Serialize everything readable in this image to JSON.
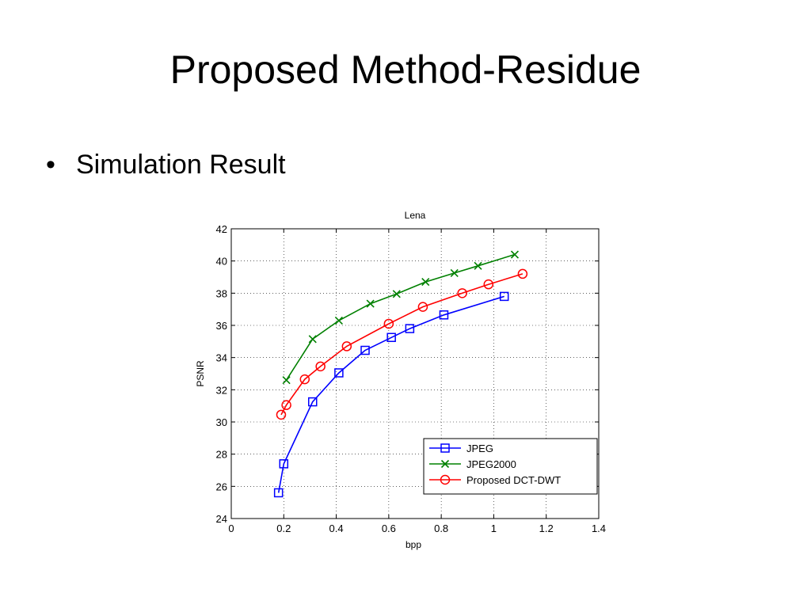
{
  "slide": {
    "title": "Proposed Method-Residue",
    "bullet_symbol": "•",
    "bullet_text": "Simulation Result"
  },
  "chart_data": {
    "type": "line",
    "title": "Lena",
    "xlabel": "bpp",
    "ylabel": "PSNR",
    "xlim": [
      0,
      1.4
    ],
    "ylim": [
      24,
      42
    ],
    "x_ticks": [
      0,
      0.2,
      0.4,
      0.6,
      0.8,
      1,
      1.2,
      1.4
    ],
    "x_tick_labels": [
      "0",
      "0.2",
      "0.4",
      "0.6",
      "0.8",
      "1",
      "1.2",
      "1.4"
    ],
    "y_ticks": [
      24,
      26,
      28,
      30,
      32,
      34,
      36,
      38,
      40,
      42
    ],
    "y_tick_labels": [
      "24",
      "26",
      "28",
      "30",
      "32",
      "34",
      "36",
      "38",
      "40",
      "42"
    ],
    "grid": true,
    "legend_position": "bottom-right",
    "series": [
      {
        "name": "JPEG",
        "color": "#0000ff",
        "marker": "square",
        "x": [
          0.18,
          0.2,
          0.31,
          0.41,
          0.51,
          0.61,
          0.68,
          0.81,
          1.04
        ],
        "y": [
          25.6,
          27.4,
          31.25,
          33.05,
          34.45,
          35.25,
          35.8,
          36.65,
          37.8
        ]
      },
      {
        "name": "JPEG2000",
        "color": "#008000",
        "marker": "x",
        "x": [
          0.21,
          0.31,
          0.41,
          0.53,
          0.63,
          0.74,
          0.85,
          0.94,
          1.08
        ],
        "y": [
          32.6,
          35.15,
          36.3,
          37.35,
          37.95,
          38.7,
          39.25,
          39.7,
          40.4
        ]
      },
      {
        "name": "Proposed DCT-DWT",
        "color": "#ff0000",
        "marker": "circle",
        "x": [
          0.19,
          0.21,
          0.28,
          0.34,
          0.44,
          0.6,
          0.73,
          0.88,
          0.98,
          1.11
        ],
        "y": [
          30.45,
          31.05,
          32.65,
          33.45,
          34.7,
          36.1,
          37.15,
          38,
          38.55,
          39.2
        ]
      }
    ]
  }
}
